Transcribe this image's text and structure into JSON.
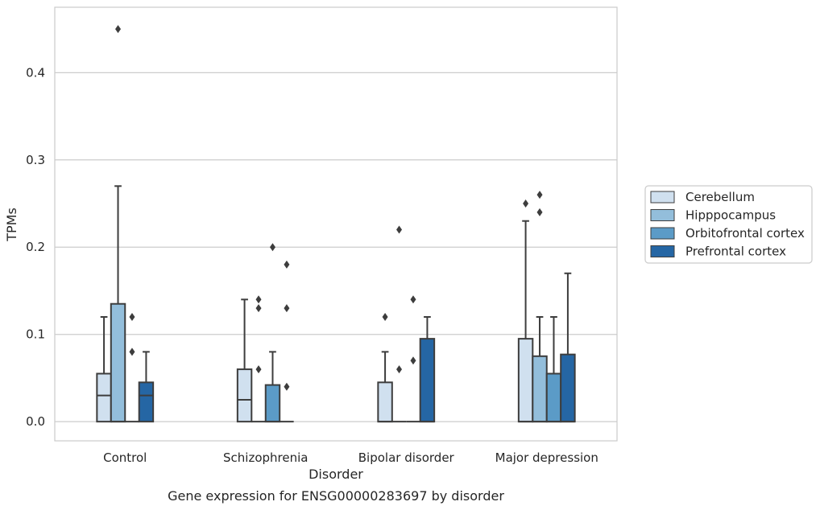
{
  "chart_data": {
    "type": "box",
    "xlabel": "Disorder",
    "ylabel": "TPMs",
    "caption": "Gene expression for ENSG00000283697 by disorder",
    "ylim": [
      -0.022,
      0.475
    ],
    "yticks": [
      0.0,
      0.1,
      0.2,
      0.3,
      0.4
    ],
    "ytick_labels": [
      "0.0",
      "0.1",
      "0.2",
      "0.3",
      "0.4"
    ],
    "grid": "horizontal",
    "legend_position": "right",
    "categories": [
      "Control",
      "Schizophrenia",
      "Bipolar disorder",
      "Major depression"
    ],
    "series": [
      {
        "name": "Cerebellum",
        "color": "#d0e0ef",
        "boxes": [
          {
            "min": 0.0,
            "q1": 0.0,
            "median": 0.03,
            "q3": 0.055,
            "max": 0.12,
            "outliers": []
          },
          {
            "min": 0.0,
            "q1": 0.0,
            "median": 0.025,
            "q3": 0.06,
            "max": 0.14,
            "outliers": []
          },
          {
            "min": 0.0,
            "q1": 0.0,
            "median": 0.0,
            "q3": 0.045,
            "max": 0.08,
            "outliers": [
              0.12
            ]
          },
          {
            "min": 0.0,
            "q1": 0.0,
            "median": 0.0,
            "q3": 0.095,
            "max": 0.23,
            "outliers": [
              0.25
            ]
          }
        ]
      },
      {
        "name": "Hipppocampus",
        "color": "#93bedb",
        "boxes": [
          {
            "min": 0.0,
            "q1": 0.0,
            "median": 0.0,
            "q3": 0.135,
            "max": 0.27,
            "outliers": [
              0.45
            ]
          },
          {
            "min": 0.0,
            "q1": 0.0,
            "median": 0.0,
            "q3": 0.0,
            "max": 0.0,
            "outliers": [
              0.06,
              0.13,
              0.14
            ]
          },
          {
            "min": 0.0,
            "q1": 0.0,
            "median": 0.0,
            "q3": 0.0,
            "max": 0.0,
            "outliers": [
              0.06,
              0.22
            ]
          },
          {
            "min": 0.0,
            "q1": 0.0,
            "median": 0.0,
            "q3": 0.075,
            "max": 0.12,
            "outliers": [
              0.24,
              0.26
            ]
          }
        ]
      },
      {
        "name": "Orbitofrontal cortex",
        "color": "#5b9bc7",
        "boxes": [
          {
            "min": 0.0,
            "q1": 0.0,
            "median": 0.0,
            "q3": 0.0,
            "max": 0.0,
            "outliers": [
              0.08,
              0.12
            ]
          },
          {
            "min": 0.0,
            "q1": 0.0,
            "median": 0.0,
            "q3": 0.042,
            "max": 0.08,
            "outliers": [
              0.2
            ]
          },
          {
            "min": 0.0,
            "q1": 0.0,
            "median": 0.0,
            "q3": 0.0,
            "max": 0.0,
            "outliers": [
              0.07,
              0.14
            ]
          },
          {
            "min": 0.0,
            "q1": 0.0,
            "median": 0.0,
            "q3": 0.055,
            "max": 0.12,
            "outliers": []
          }
        ]
      },
      {
        "name": "Prefrontal cortex",
        "color": "#2566a4",
        "boxes": [
          {
            "min": 0.0,
            "q1": 0.0,
            "median": 0.03,
            "q3": 0.045,
            "max": 0.08,
            "outliers": []
          },
          {
            "min": 0.0,
            "q1": 0.0,
            "median": 0.0,
            "q3": 0.0,
            "max": 0.0,
            "outliers": [
              0.04,
              0.13,
              0.18
            ]
          },
          {
            "min": 0.0,
            "q1": 0.0,
            "median": 0.0,
            "q3": 0.095,
            "max": 0.12,
            "outliers": []
          },
          {
            "min": 0.0,
            "q1": 0.0,
            "median": 0.0,
            "q3": 0.077,
            "max": 0.17,
            "outliers": []
          }
        ]
      }
    ]
  }
}
